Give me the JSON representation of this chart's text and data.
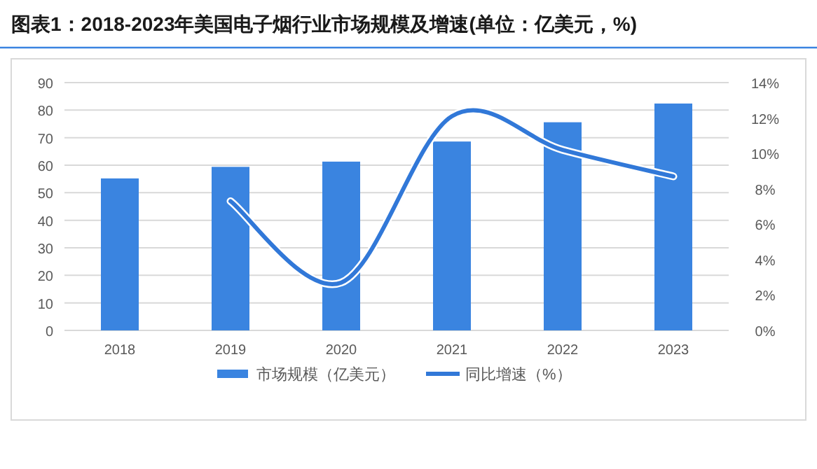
{
  "chart_data": {
    "type": "bar",
    "title": "图表1：2018-2023年美国电子烟行业市场规模及增速(单位：亿美元，%)",
    "categories": [
      "2018",
      "2019",
      "2020",
      "2021",
      "2022",
      "2023"
    ],
    "series": [
      {
        "name": "市场规模（亿美元）",
        "color": "#3a84e0",
        "values": [
          55.2,
          59.4,
          61.3,
          68.6,
          75.6,
          82.4
        ]
      },
      {
        "name": "同比增速（%）",
        "type": "line",
        "axis": "y2",
        "color": "#3178d8",
        "values": [
          null,
          7.3,
          2.7,
          12.1,
          10.2,
          8.7
        ]
      }
    ],
    "ylim": [
      0,
      90
    ],
    "yticks": [
      0,
      10,
      20,
      30,
      40,
      50,
      60,
      70,
      80,
      90
    ],
    "y2lim": [
      0,
      14
    ],
    "y2ticks": [
      {
        "value": 0,
        "label": "0%"
      },
      {
        "value": 2,
        "label": "2%"
      },
      {
        "value": 4,
        "label": "4%"
      },
      {
        "value": 6,
        "label": "6%"
      },
      {
        "value": 8,
        "label": "8%"
      },
      {
        "value": 10,
        "label": "10%"
      },
      {
        "value": 12,
        "label": "12%"
      },
      {
        "value": 14,
        "label": "14%"
      }
    ],
    "grid": "y",
    "legend": "bottom",
    "marker": "none"
  }
}
